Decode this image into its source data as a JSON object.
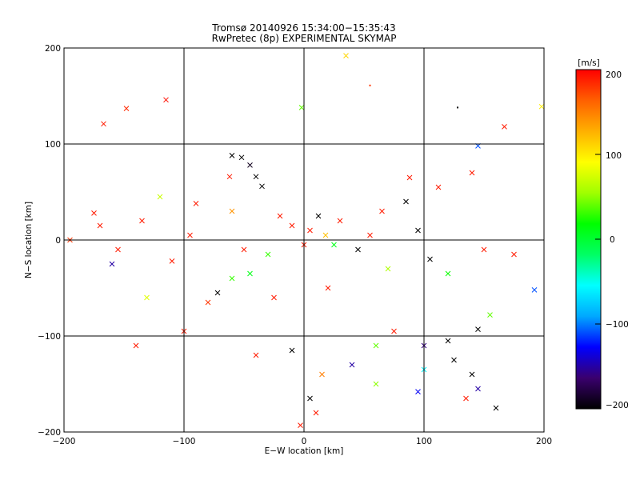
{
  "chart_data": {
    "type": "scatter",
    "title": "Tromsø 20140926 15:34:00−15:35:43",
    "subtitle": "RwPretec (8p) EXPERIMENTAL SKYMAP",
    "xlabel": "E−W location [km]",
    "ylabel": "N−S location [km]",
    "xlim": [
      -200,
      200
    ],
    "ylim": [
      -200,
      200
    ],
    "grid": true,
    "xticks": [
      "−200",
      "−100",
      "0",
      "100",
      "200"
    ],
    "yticks": [
      "−200",
      "−100",
      "0",
      "100",
      "200"
    ],
    "colorbar": {
      "label": "[m/s]",
      "range": [
        -200,
        200
      ],
      "ticks": [
        "200",
        "100",
        "0",
        "−100",
        "−200"
      ],
      "colormap": [
        "#000000",
        "#3a006e",
        "#0000ff",
        "#00a8ff",
        "#00ffff",
        "#00ff64",
        "#00ff00",
        "#a0ff00",
        "#ffff00",
        "#ffb000",
        "#ff6000",
        "#ff0000"
      ]
    },
    "points": [
      {
        "x": -167,
        "y": 121,
        "v": 190,
        "m": "x"
      },
      {
        "x": -148,
        "y": 137,
        "v": 185,
        "m": "x"
      },
      {
        "x": -115,
        "y": 146,
        "v": 195,
        "m": "x"
      },
      {
        "x": 35,
        "y": 192,
        "v": 110,
        "m": "x"
      },
      {
        "x": 55,
        "y": 161,
        "v": 180,
        "m": "."
      },
      {
        "x": 128,
        "y": 138,
        "v": -200,
        "m": "."
      },
      {
        "x": 167,
        "y": 118,
        "v": 190,
        "m": "x"
      },
      {
        "x": 198,
        "y": 139,
        "v": 100,
        "m": "x"
      },
      {
        "x": -2,
        "y": 138,
        "v": 40,
        "m": "x"
      },
      {
        "x": -60,
        "y": 88,
        "v": -200,
        "m": "x"
      },
      {
        "x": -52,
        "y": 86,
        "v": -200,
        "m": "x"
      },
      {
        "x": -45,
        "y": 78,
        "v": -190,
        "m": "x"
      },
      {
        "x": -40,
        "y": 66,
        "v": -200,
        "m": "x"
      },
      {
        "x": -35,
        "y": 56,
        "v": -200,
        "m": "x"
      },
      {
        "x": -62,
        "y": 66,
        "v": 190,
        "m": "x"
      },
      {
        "x": 145,
        "y": 98,
        "v": -110,
        "m": "x"
      },
      {
        "x": 140,
        "y": 70,
        "v": 190,
        "m": "x"
      },
      {
        "x": -175,
        "y": 28,
        "v": 190,
        "m": "x"
      },
      {
        "x": -195,
        "y": 0,
        "v": 180,
        "m": "x"
      },
      {
        "x": -155,
        "y": -10,
        "v": 190,
        "m": "x"
      },
      {
        "x": -160,
        "y": -25,
        "v": -150,
        "m": "x"
      },
      {
        "x": -131,
        "y": -60,
        "v": 80,
        "m": "x"
      },
      {
        "x": -110,
        "y": -22,
        "v": 190,
        "m": "x"
      },
      {
        "x": -90,
        "y": 38,
        "v": 190,
        "m": "x"
      },
      {
        "x": -95,
        "y": 5,
        "v": 190,
        "m": "x"
      },
      {
        "x": -80,
        "y": -65,
        "v": 180,
        "m": "x"
      },
      {
        "x": -72,
        "y": -55,
        "v": -200,
        "m": "x"
      },
      {
        "x": -60,
        "y": -40,
        "v": 30,
        "m": "x"
      },
      {
        "x": -45,
        "y": -35,
        "v": 10,
        "m": "x"
      },
      {
        "x": -30,
        "y": -15,
        "v": 30,
        "m": "x"
      },
      {
        "x": -20,
        "y": 25,
        "v": 190,
        "m": "x"
      },
      {
        "x": -10,
        "y": 15,
        "v": 190,
        "m": "x"
      },
      {
        "x": 5,
        "y": 10,
        "v": 190,
        "m": "x"
      },
      {
        "x": 12,
        "y": 25,
        "v": -200,
        "m": "x"
      },
      {
        "x": 18,
        "y": 5,
        "v": 120,
        "m": "x"
      },
      {
        "x": 25,
        "y": -5,
        "v": 10,
        "m": "x"
      },
      {
        "x": 30,
        "y": 20,
        "v": 190,
        "m": "x"
      },
      {
        "x": 45,
        "y": -10,
        "v": -200,
        "m": "x"
      },
      {
        "x": 55,
        "y": 5,
        "v": 190,
        "m": "x"
      },
      {
        "x": 70,
        "y": -30,
        "v": 60,
        "m": "x"
      },
      {
        "x": 85,
        "y": 40,
        "v": -200,
        "m": "x"
      },
      {
        "x": 95,
        "y": 10,
        "v": -200,
        "m": "x"
      },
      {
        "x": 105,
        "y": -20,
        "v": -200,
        "m": "x"
      },
      {
        "x": 120,
        "y": -35,
        "v": 20,
        "m": "x"
      },
      {
        "x": 150,
        "y": -10,
        "v": 190,
        "m": "x"
      },
      {
        "x": 175,
        "y": -15,
        "v": 190,
        "m": "x"
      },
      {
        "x": 192,
        "y": -52,
        "v": -110,
        "m": "x"
      },
      {
        "x": 155,
        "y": -78,
        "v": 40,
        "m": "x"
      },
      {
        "x": 145,
        "y": -93,
        "v": -200,
        "m": "x"
      },
      {
        "x": 120,
        "y": -105,
        "v": -200,
        "m": "x"
      },
      {
        "x": 100,
        "y": -110,
        "v": -160,
        "m": "x"
      },
      {
        "x": 75,
        "y": -95,
        "v": 190,
        "m": "x"
      },
      {
        "x": 60,
        "y": -110,
        "v": 40,
        "m": "x"
      },
      {
        "x": 40,
        "y": -130,
        "v": -150,
        "m": "x"
      },
      {
        "x": 15,
        "y": -140,
        "v": 150,
        "m": "x"
      },
      {
        "x": -10,
        "y": -115,
        "v": -200,
        "m": "x"
      },
      {
        "x": -40,
        "y": -120,
        "v": 190,
        "m": "x"
      },
      {
        "x": -100,
        "y": -95,
        "v": 190,
        "m": "x"
      },
      {
        "x": -140,
        "y": -110,
        "v": 190,
        "m": "x"
      },
      {
        "x": 5,
        "y": -165,
        "v": -200,
        "m": "x"
      },
      {
        "x": 10,
        "y": -180,
        "v": 190,
        "m": "x"
      },
      {
        "x": -3,
        "y": -193,
        "v": 190,
        "m": "x"
      },
      {
        "x": 95,
        "y": -158,
        "v": -130,
        "m": "x"
      },
      {
        "x": 135,
        "y": -165,
        "v": 190,
        "m": "x"
      },
      {
        "x": 145,
        "y": -155,
        "v": -150,
        "m": "x"
      },
      {
        "x": 160,
        "y": -175,
        "v": -200,
        "m": "x"
      },
      {
        "x": 125,
        "y": -125,
        "v": -200,
        "m": "x"
      },
      {
        "x": 140,
        "y": -140,
        "v": -200,
        "m": "x"
      },
      {
        "x": 100,
        "y": -135,
        "v": -60,
        "m": "x"
      },
      {
        "x": 60,
        "y": -150,
        "v": 50,
        "m": "x"
      },
      {
        "x": -170,
        "y": 15,
        "v": 190,
        "m": "x"
      },
      {
        "x": -120,
        "y": 45,
        "v": 70,
        "m": "x"
      },
      {
        "x": -135,
        "y": 20,
        "v": 190,
        "m": "x"
      },
      {
        "x": -60,
        "y": 30,
        "v": 140,
        "m": "x"
      },
      {
        "x": -50,
        "y": -10,
        "v": 190,
        "m": "x"
      },
      {
        "x": 0,
        "y": -5,
        "v": 190,
        "m": "x"
      },
      {
        "x": 65,
        "y": 30,
        "v": 190,
        "m": "x"
      },
      {
        "x": 112,
        "y": 55,
        "v": 190,
        "m": "x"
      },
      {
        "x": 88,
        "y": 65,
        "v": 190,
        "m": "x"
      },
      {
        "x": 20,
        "y": -50,
        "v": 190,
        "m": "x"
      },
      {
        "x": -25,
        "y": -60,
        "v": 190,
        "m": "x"
      }
    ]
  }
}
